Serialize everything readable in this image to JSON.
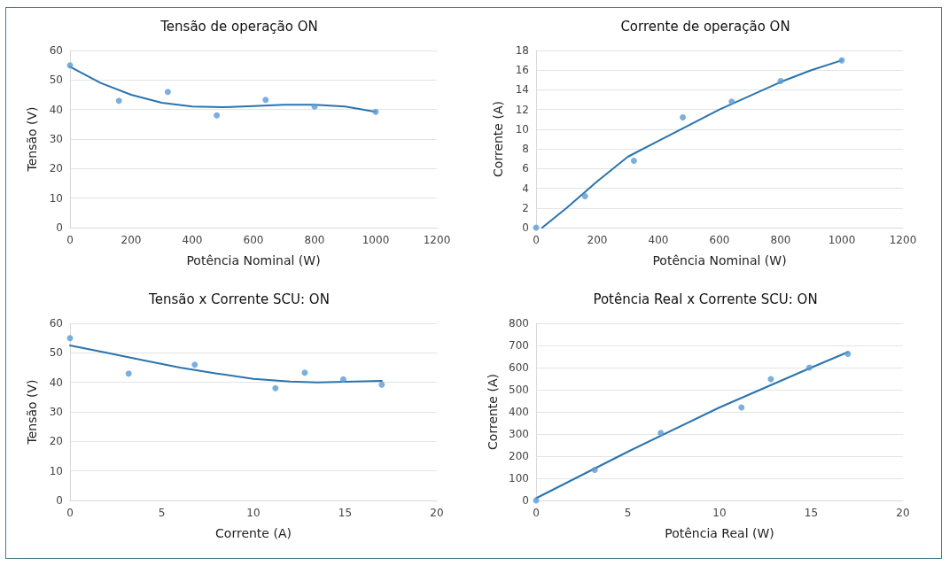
{
  "chart_data": [
    {
      "type": "scatter",
      "title": "Tensão de operação ON",
      "xlabel": "Potência Nominal (W)",
      "ylabel": "Tensão (V)",
      "xlim": [
        0,
        1200
      ],
      "xticks": [
        0,
        200,
        400,
        600,
        800,
        1000,
        1200
      ],
      "ylim": [
        0,
        60
      ],
      "yticks": [
        0,
        10,
        20,
        30,
        40,
        50,
        60
      ],
      "grid": "y",
      "marker": "circle",
      "series": [
        {
          "color": "#5b9bd5",
          "x": [
            0,
            160,
            320,
            480,
            640,
            800,
            1000
          ],
          "values": [
            55,
            43,
            46,
            38,
            43.3,
            41,
            39.2
          ]
        },
        {
          "type": "line",
          "color": "#2b74ae",
          "line_style": "solid",
          "marker": "none",
          "x": [
            0,
            100,
            200,
            300,
            400,
            500,
            600,
            700,
            800,
            900,
            1000
          ],
          "values": [
            54.5,
            49,
            45,
            42.3,
            41,
            40.8,
            41.2,
            41.6,
            41.6,
            41,
            39.2
          ]
        }
      ]
    },
    {
      "type": "scatter",
      "title": "Corrente de operação ON",
      "xlabel": "Potência Nominal (W)",
      "ylabel": "Corrente (A)",
      "xlim": [
        0,
        1200
      ],
      "xticks": [
        0,
        200,
        400,
        600,
        800,
        1000,
        1200
      ],
      "ylim": [
        0,
        18
      ],
      "yticks": [
        0,
        2,
        4,
        6,
        8,
        10,
        12,
        14,
        16,
        18
      ],
      "grid": "y",
      "marker": "circle",
      "series": [
        {
          "color": "#5b9bd5",
          "x": [
            0,
            160,
            320,
            480,
            640,
            800,
            1000
          ],
          "values": [
            0,
            3.2,
            6.8,
            11.2,
            12.8,
            14.9,
            17
          ]
        },
        {
          "type": "line",
          "color": "#2b74ae",
          "line_style": "solid",
          "marker": "none",
          "x": [
            20,
            100,
            200,
            300,
            400,
            500,
            600,
            700,
            800,
            900,
            1000
          ],
          "values": [
            0,
            2,
            4.7,
            7.2,
            8.8,
            10.4,
            12,
            13.4,
            14.8,
            16,
            17
          ]
        }
      ]
    },
    {
      "type": "scatter",
      "title": "Tensão x Corrente SCU: ON",
      "xlabel": "Corrente (A)",
      "ylabel": "Tensão (V)",
      "xlim": [
        0,
        20
      ],
      "xticks": [
        0,
        5,
        10,
        15,
        20
      ],
      "ylim": [
        0,
        60
      ],
      "yticks": [
        0,
        10,
        20,
        30,
        40,
        50,
        60
      ],
      "grid": "y",
      "marker": "circle",
      "series": [
        {
          "color": "#5b9bd5",
          "x": [
            0,
            3.2,
            6.8,
            11.2,
            12.8,
            14.9,
            17
          ],
          "values": [
            55,
            43,
            46,
            38,
            43.3,
            41,
            39.2
          ]
        },
        {
          "type": "line",
          "color": "#2b74ae",
          "line_style": "solid",
          "marker": "none",
          "x": [
            0,
            2,
            4,
            6,
            8,
            10,
            12,
            13.5,
            15,
            17
          ],
          "values": [
            52.5,
            50,
            47.5,
            45,
            43,
            41.2,
            40.3,
            40,
            40.2,
            40.5
          ]
        }
      ]
    },
    {
      "type": "scatter",
      "title": "Potência Real x Corrente SCU: ON",
      "xlabel": "Potência Real (W)",
      "ylabel": "Corrente (A)",
      "xlim": [
        0,
        20
      ],
      "xticks": [
        0,
        5,
        10,
        15,
        20
      ],
      "ylim": [
        0,
        800
      ],
      "yticks": [
        0,
        100,
        200,
        300,
        400,
        500,
        600,
        700,
        800
      ],
      "grid": "y",
      "marker": "circle",
      "series": [
        {
          "color": "#5b9bd5",
          "x": [
            0,
            3.2,
            6.8,
            11.2,
            12.8,
            14.9,
            17
          ],
          "values": [
            0,
            138,
            305,
            420,
            548,
            600,
            662
          ]
        },
        {
          "type": "line",
          "color": "#2b74ae",
          "line_style": "solid",
          "marker": "none",
          "x": [
            0,
            5,
            10,
            15,
            17
          ],
          "values": [
            10,
            220,
            420,
            600,
            670
          ]
        }
      ]
    }
  ]
}
